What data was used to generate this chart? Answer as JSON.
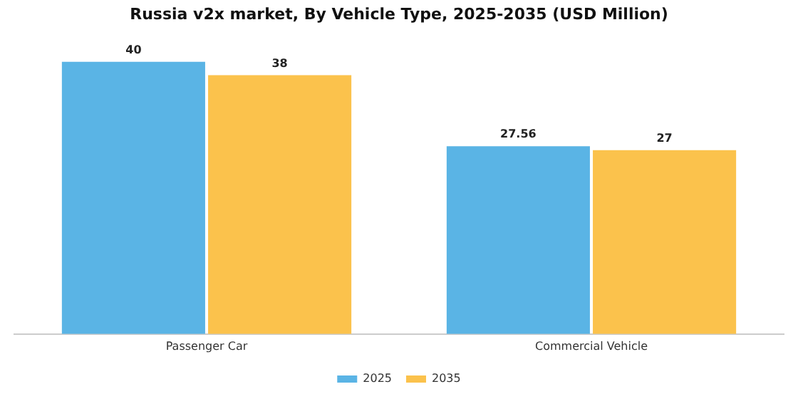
{
  "chart_data": {
    "type": "bar",
    "title": "Russia v2x market, By Vehicle Type, 2025-2035 (USD Million)",
    "categories": [
      "Passenger Car",
      "Commercial Vehicle"
    ],
    "series": [
      {
        "name": "2025",
        "color": "#5ab4e5",
        "values": [
          40,
          27.56
        ]
      },
      {
        "name": "2035",
        "color": "#fbc24c",
        "values": [
          38,
          27
        ]
      }
    ],
    "data_labels": true,
    "legend": "bottom",
    "grid": false
  }
}
